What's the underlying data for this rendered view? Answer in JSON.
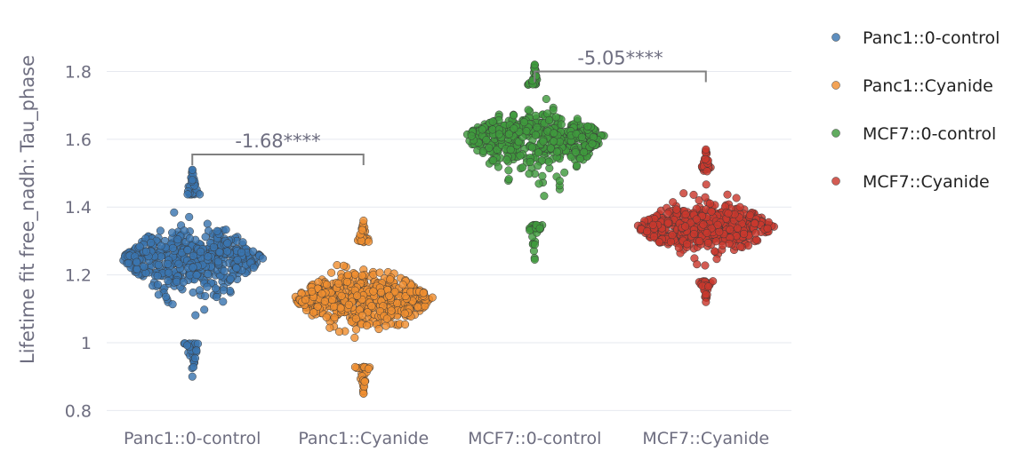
{
  "chart_data": {
    "type": "scatter",
    "subtype": "swarm",
    "ylabel": "Lifetime fit free_nadh: Tau_phase",
    "xlabel": "",
    "ylim": [
      0.78,
      1.885
    ],
    "yticks": [
      0.8,
      1,
      1.2,
      1.4,
      1.6,
      1.8
    ],
    "ytick_labels": [
      "0.8",
      "1",
      "1.2",
      "1.4",
      "1.6",
      "1.8"
    ],
    "categories": [
      "Panc1::0-control",
      "Panc1::Cyanide",
      "MCF7::0-control",
      "MCF7::Cyanide"
    ],
    "grid": true,
    "legend_position": "right",
    "series": [
      {
        "name": "Panc1::0-control",
        "color": "#3a75b0",
        "median": 1.26,
        "min": 0.9,
        "max": 1.51,
        "widest_at": 1.25,
        "outliers": [
          0.9,
          1.51,
          1.48
        ]
      },
      {
        "name": "Panc1::Cyanide",
        "color": "#ef8f31",
        "median": 1.12,
        "min": 0.85,
        "max": 1.36,
        "widest_at": 1.13,
        "outliers": [
          0.85,
          1.36
        ]
      },
      {
        "name": "MCF7::0-control",
        "color": "#3f9a3d",
        "median": 1.6,
        "min": 1.245,
        "max": 1.82,
        "widest_at": 1.61,
        "outliers": [
          1.245,
          1.82
        ]
      },
      {
        "name": "MCF7::Cyanide",
        "color": "#c9382d",
        "median": 1.33,
        "min": 1.12,
        "max": 1.57,
        "widest_at": 1.34,
        "outliers": [
          1.12,
          1.57
        ]
      }
    ],
    "annotations": [
      {
        "text": "-1.68****",
        "from": 0,
        "to": 1,
        "y": 1.555
      },
      {
        "text": "-5.05****",
        "from": 2,
        "to": 3,
        "y": 1.8
      }
    ]
  }
}
